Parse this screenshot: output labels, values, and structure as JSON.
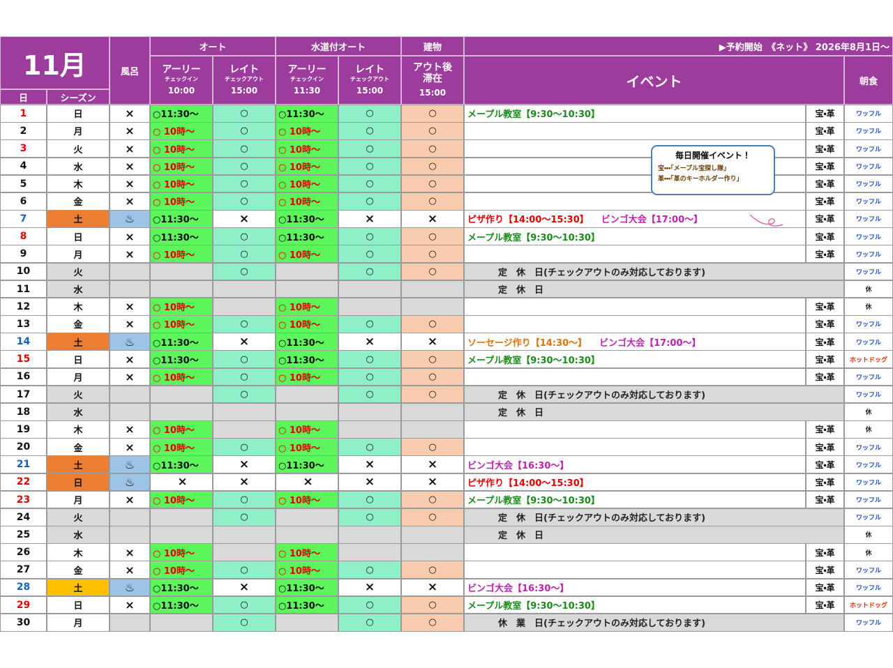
{
  "header": {
    "month": "11月",
    "day_label": "日",
    "season_label": "シーズン",
    "bath": "風呂",
    "auto": "オート",
    "water_auto": "水道付オート",
    "building": "建物",
    "reservation": "▶予約開始　《ネット》 2026年8月1日～",
    "event": "イベント",
    "breakfast": "朝食",
    "columns": [
      {
        "title": "アーリー",
        "sub": "チェックイン",
        "time": "10:00"
      },
      {
        "title": "レイト",
        "sub": "チェックアウト",
        "time": "15:00"
      },
      {
        "title": "アーリー",
        "sub": "チェックイン",
        "time": "11:30"
      },
      {
        "title": "レイト",
        "sub": "チェックアウト",
        "time": "15:00"
      },
      {
        "title": "アウト後",
        "sub": "滞在",
        "time": "15:00"
      }
    ]
  },
  "callout": {
    "title": "毎日開催イベント！",
    "lines": [
      "宝・・・「メープル宝探し隊」",
      "革・・・「革のキーホルダー作り」"
    ]
  },
  "rows": [
    {
      "day": 1,
      "day_color": "#e00000",
      "dow": "日",
      "bath": "×",
      "auto_early": "○11:30～",
      "auto_late": "○",
      "water_early": "○11:30～",
      "water_late": "○",
      "building": "○",
      "events": [
        {
          "text": "メープル教室【9:30～10:30】",
          "color": "#1a8a1a"
        }
      ],
      "extra": "宝・革",
      "breakfast": "ワッフル"
    },
    {
      "day": 2,
      "dow": "月",
      "bath": "×",
      "auto_early": "○ 10時～",
      "auto_late": "○",
      "water_early": "○ 10時～",
      "water_late": "○",
      "building": "○",
      "extra": "宝・革",
      "breakfast": "ワッフル"
    },
    {
      "day": 3,
      "day_color": "#e00000",
      "dow": "火",
      "bath": "×",
      "auto_early": "○ 10時～",
      "auto_late": "○",
      "water_early": "○ 10時～",
      "water_late": "○",
      "building": "○",
      "extra": "宝・革",
      "breakfast": "ワッフル"
    },
    {
      "day": 4,
      "dow": "水",
      "bath": "×",
      "auto_early": "○ 10時～",
      "auto_late": "○",
      "water_early": "○ 10時～",
      "water_late": "○",
      "building": "○",
      "extra": "宝・革",
      "breakfast": "ワッフル"
    },
    {
      "day": 5,
      "dow": "木",
      "bath": "×",
      "auto_early": "○ 10時～",
      "auto_late": "○",
      "water_early": "○ 10時～",
      "water_late": "○",
      "building": "○",
      "extra": "宝・革",
      "breakfast": "ワッフル"
    },
    {
      "day": 6,
      "dow": "金",
      "bath": "×",
      "auto_early": "○ 10時～",
      "auto_late": "○",
      "water_early": "○ 10時～",
      "water_late": "○",
      "building": "○",
      "extra": "宝・革",
      "breakfast": "ワッフル"
    },
    {
      "day": 7,
      "day_color": "#1060c0",
      "dow": "土",
      "season_color": "#ed7d31",
      "bath": "♨",
      "auto_early": "○11:30～",
      "auto_late": "×",
      "water_early": "○11:30～",
      "water_late": "×",
      "building": "×",
      "events": [
        {
          "text": "ピザ作り【14:00～15:30】",
          "color": "#e00000"
        },
        {
          "text": "ビンゴ大会【17:00～】",
          "color": "#c020b0"
        }
      ],
      "extra": "宝・革",
      "breakfast": "ワッフル"
    },
    {
      "day": 8,
      "day_color": "#e00000",
      "dow": "日",
      "bath": "×",
      "auto_early": "○11:30～",
      "auto_late": "○",
      "water_early": "○11:30～",
      "water_late": "○",
      "building": "○",
      "events": [
        {
          "text": "メープル教室【9:30～10:30】",
          "color": "#1a8a1a"
        }
      ],
      "extra": "宝・革",
      "breakfast": "ワッフル"
    },
    {
      "day": 9,
      "dow": "月",
      "bath": "×",
      "auto_early": "○ 10時～",
      "auto_late": "○",
      "water_early": "○ 10時～",
      "water_late": "○",
      "building": "○",
      "extra": "宝・革",
      "breakfast": "ワッフル"
    },
    {
      "day": 10,
      "dow": "火",
      "season_color": "#d9d9d9",
      "closed": true,
      "auto_late": "○",
      "water_late": "○",
      "building": "○",
      "events": [
        {
          "text": "定　休　日(チェックアウトのみ対応しております)",
          "color": "#222222"
        }
      ],
      "breakfast": "ワッフル"
    },
    {
      "day": 11,
      "dow": "水",
      "season_color": "#d9d9d9",
      "closed": true,
      "events": [
        {
          "text": "定　休　日",
          "color": "#222222"
        }
      ],
      "breakfast": "休",
      "breakfast_color": "#222222"
    },
    {
      "day": 12,
      "dow": "木",
      "bath": "×",
      "auto_early": "○ 10時～",
      "water_early": "○ 10時～",
      "extra": "宝・革",
      "breakfast": "休",
      "breakfast_color": "#222222"
    },
    {
      "day": 13,
      "dow": "金",
      "bath": "×",
      "auto_early": "○ 10時～",
      "auto_late": "○",
      "water_early": "○ 10時～",
      "water_late": "○",
      "building": "○",
      "extra": "宝・革",
      "breakfast": "ワッフル"
    },
    {
      "day": 14,
      "day_color": "#1060c0",
      "dow": "土",
      "season_color": "#ed7d31",
      "bath": "♨",
      "auto_early": "○11:30～",
      "auto_late": "×",
      "water_early": "○11:30～",
      "water_late": "×",
      "building": "×",
      "events": [
        {
          "text": "ソーセージ作り【14:30～】",
          "color": "#e07000"
        },
        {
          "text": "ビンゴ大会【17:00～】",
          "color": "#c020b0"
        }
      ],
      "extra": "宝・革",
      "breakfast": "ワッフル"
    },
    {
      "day": 15,
      "day_color": "#e00000",
      "dow": "日",
      "bath": "×",
      "auto_early": "○11:30～",
      "auto_late": "○",
      "water_early": "○11:30～",
      "water_late": "○",
      "building": "○",
      "events": [
        {
          "text": "メープル教室【9:30～10:30】",
          "color": "#1a8a1a"
        }
      ],
      "extra": "宝・革",
      "breakfast": "ホットドッグ",
      "breakfast_color": "#e03000"
    },
    {
      "day": 16,
      "dow": "月",
      "bath": "×",
      "auto_early": "○ 10時～",
      "auto_late": "○",
      "water_early": "○ 10時～",
      "water_late": "○",
      "building": "○",
      "extra": "宝・革",
      "breakfast": "ワッフル"
    },
    {
      "day": 17,
      "dow": "火",
      "season_color": "#d9d9d9",
      "closed": true,
      "auto_late": "○",
      "water_late": "○",
      "building": "○",
      "events": [
        {
          "text": "定　休　日(チェックアウトのみ対応しております)",
          "color": "#222222"
        }
      ],
      "breakfast": "ワッフル"
    },
    {
      "day": 18,
      "dow": "水",
      "season_color": "#d9d9d9",
      "closed": true,
      "events": [
        {
          "text": "定　休　日",
          "color": "#222222"
        }
      ],
      "breakfast": "休",
      "breakfast_color": "#222222"
    },
    {
      "day": 19,
      "dow": "木",
      "bath": "×",
      "auto_early": "○ 10時～",
      "water_early": "○ 10時～",
      "extra": "宝・革",
      "breakfast": "休",
      "breakfast_color": "#222222"
    },
    {
      "day": 20,
      "dow": "金",
      "bath": "×",
      "auto_early": "○ 10時～",
      "auto_late": "○",
      "water_early": "○ 10時～",
      "water_late": "○",
      "building": "○",
      "extra": "宝・革",
      "breakfast": "ワッフル"
    },
    {
      "day": 21,
      "day_color": "#1060c0",
      "dow": "土",
      "season_color": "#ed7d31",
      "bath": "♨",
      "auto_early": "○11:30～",
      "auto_late": "×",
      "water_early": "○11:30～",
      "water_late": "×",
      "building": "×",
      "events": [
        {
          "text": "ビンゴ大会【16:30～】",
          "color": "#c020b0"
        }
      ],
      "extra": "宝・革",
      "breakfast": "ワッフル"
    },
    {
      "day": 22,
      "day_color": "#e00000",
      "dow": "日",
      "season_color": "#ed7d31",
      "bath": "♨",
      "auto_early": "×",
      "auto_late": "×",
      "water_early": "×",
      "water_late": "×",
      "building": "×",
      "events": [
        {
          "text": "ピザ作り【14:00～15:30】",
          "color": "#e00000"
        }
      ],
      "extra": "宝・革",
      "breakfast": "ワッフル"
    },
    {
      "day": 23,
      "day_color": "#e00000",
      "dow": "月",
      "bath": "×",
      "auto_early": "○ 10時～",
      "auto_late": "○",
      "water_early": "○ 10時～",
      "water_late": "○",
      "building": "○",
      "events": [
        {
          "text": "メープル教室【9:30～10:30】",
          "color": "#1a8a1a"
        }
      ],
      "extra": "宝・革",
      "breakfast": "ワッフル"
    },
    {
      "day": 24,
      "dow": "火",
      "season_color": "#d9d9d9",
      "closed": true,
      "auto_late": "○",
      "water_late": "○",
      "building": "○",
      "events": [
        {
          "text": "定　休　日(チェックアウトのみ対応しております)",
          "color": "#222222"
        }
      ],
      "breakfast": "ワッフル"
    },
    {
      "day": 25,
      "dow": "水",
      "season_color": "#d9d9d9",
      "closed": true,
      "events": [
        {
          "text": "定　休　日",
          "color": "#222222"
        }
      ],
      "breakfast": "休",
      "breakfast_color": "#222222"
    },
    {
      "day": 26,
      "dow": "木",
      "bath": "×",
      "auto_early": "○ 10時～",
      "water_early": "○ 10時～",
      "extra": "宝・革",
      "breakfast": "休",
      "breakfast_color": "#222222"
    },
    {
      "day": 27,
      "dow": "金",
      "bath": "×",
      "auto_early": "○ 10時～",
      "auto_late": "○",
      "water_early": "○ 10時～",
      "water_late": "○",
      "building": "○",
      "extra": "宝・革",
      "breakfast": "ワッフル"
    },
    {
      "day": 28,
      "day_color": "#1060c0",
      "dow": "土",
      "season_color": "#ffc000",
      "bath": "♨",
      "auto_early": "○11:30～",
      "auto_late": "×",
      "water_early": "○11:30～",
      "water_late": "×",
      "building": "×",
      "events": [
        {
          "text": "ビンゴ大会【16:30～】",
          "color": "#c020b0"
        }
      ],
      "extra": "宝・革",
      "breakfast": "ワッフル"
    },
    {
      "day": 29,
      "day_color": "#e00000",
      "dow": "日",
      "bath": "×",
      "auto_early": "○11:30～",
      "auto_late": "○",
      "water_early": "○11:30～",
      "water_late": "○",
      "building": "○",
      "events": [
        {
          "text": "メープル教室【9:30～10:30】",
          "color": "#1a8a1a"
        }
      ],
      "extra": "宝・革",
      "breakfast": "ホットドッグ",
      "breakfast_color": "#e03000"
    },
    {
      "day": 30,
      "dow": "月",
      "closed": true,
      "auto_late": "○",
      "water_late": "○",
      "building": "○",
      "events": [
        {
          "text": "休　業　日(チェックアウトのみ対応しております)",
          "color": "#222222"
        }
      ],
      "breakfast": "ワッフル"
    }
  ]
}
